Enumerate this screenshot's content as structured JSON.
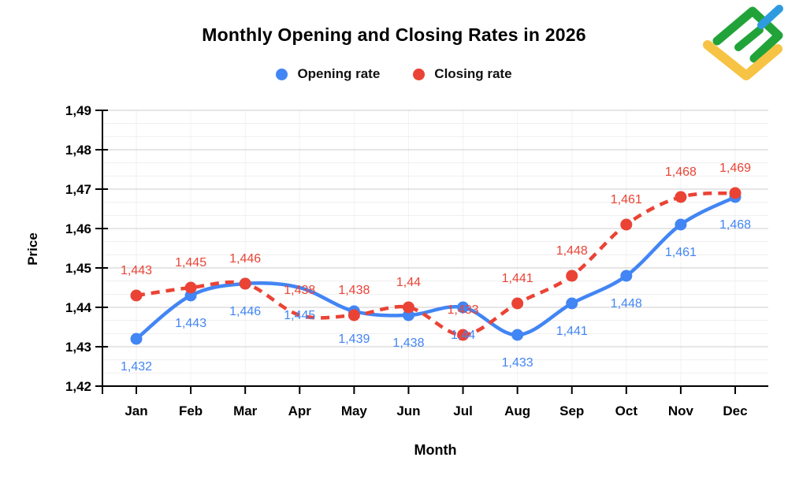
{
  "logo": {
    "name": "LiteFinance logo",
    "colors": {
      "green": "#21A339",
      "blue": "#2E9BDF",
      "yellow": "#F6C344"
    }
  },
  "chart_data": {
    "type": "line",
    "title": "Monthly Opening and Closing Rates in 2026",
    "xlabel": "Month",
    "ylabel": "Price",
    "categories": [
      "Jan",
      "Feb",
      "Mar",
      "Apr",
      "May",
      "Jun",
      "Jul",
      "Aug",
      "Sep",
      "Oct",
      "Nov",
      "Dec"
    ],
    "series": [
      {
        "name": "Opening rate",
        "color": "#4285F4",
        "line_style": "solid",
        "label_position": "below",
        "values": [
          1.432,
          1.443,
          1.446,
          1.445,
          1.439,
          1.438,
          1.44,
          1.433,
          1.441,
          1.448,
          1.461,
          1.468
        ],
        "point_labels": [
          "1,432",
          "1,443",
          "1,446",
          "1,445",
          "1,439",
          "1,438",
          "1,44",
          "1,433",
          "1,441",
          "1,448",
          "1,461",
          "1,468"
        ]
      },
      {
        "name": "Closing rate",
        "color": "#EA4335",
        "line_style": "dashed",
        "label_position": "above",
        "values": [
          1.443,
          1.445,
          1.446,
          1.438,
          1.438,
          1.44,
          1.433,
          1.441,
          1.448,
          1.461,
          1.468,
          1.469
        ],
        "point_labels": [
          "1,443",
          "1,445",
          "1,446",
          "1,438",
          "1,438",
          "1,44",
          "1,433",
          "1,441",
          "1,448",
          "1,461",
          "1,468",
          "1,469"
        ]
      }
    ],
    "ylim": [
      1.42,
      1.49
    ],
    "y_tick_labels": [
      "1,42",
      "1,43",
      "1,44",
      "1,45",
      "1,46",
      "1,47",
      "1,48",
      "1,49"
    ],
    "grid": {
      "horizontal_major": true,
      "minor_per_major": 2,
      "vertical_month_lines": true
    },
    "legend_position": "top",
    "smooth_lines": true,
    "hide_markers_at": [
      "Apr"
    ]
  }
}
